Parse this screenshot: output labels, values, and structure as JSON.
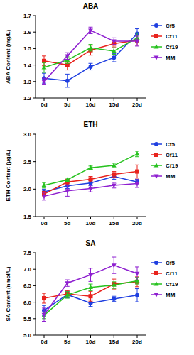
{
  "chart_data": [
    {
      "type": "line",
      "title": "ABA",
      "y_label": "ABA Content (mg/L)",
      "categories": [
        "0d",
        "5d",
        "10d",
        "15d",
        "20d"
      ],
      "ylim": [
        1.2,
        1.7
      ],
      "yticks": [
        1.2,
        1.3,
        1.4,
        1.5,
        1.6,
        1.7
      ],
      "legend": "right",
      "series": [
        {
          "name": "Cf5",
          "color": "#1f3fe0",
          "marker": "circle",
          "values": [
            1.32,
            1.305,
            1.39,
            1.445,
            1.59
          ],
          "errors": [
            0.03,
            0.04,
            0.02,
            0.025,
            0.03
          ]
        },
        {
          "name": "Cf11",
          "color": "#e8221c",
          "marker": "square",
          "values": [
            1.425,
            1.4,
            1.49,
            1.53,
            1.55
          ],
          "errors": [
            0.03,
            0.03,
            0.03,
            0.02,
            0.03
          ]
        },
        {
          "name": "Cf19",
          "color": "#27c21f",
          "marker": "triangle-up",
          "values": [
            1.385,
            1.43,
            1.505,
            1.485,
            1.565
          ],
          "errors": [
            0.03,
            0.02,
            0.02,
            0.02,
            0.03
          ]
        },
        {
          "name": "MM",
          "color": "#8e1fd0",
          "marker": "triangle-down",
          "values": [
            1.3,
            1.455,
            1.61,
            1.545,
            1.545
          ],
          "errors": [
            0.02,
            0.02,
            0.02,
            0.02,
            0.03
          ]
        }
      ]
    },
    {
      "type": "line",
      "title": "ETH",
      "y_label": "ETH Content (μg/L)",
      "categories": [
        "0d",
        "5d",
        "10d",
        "15d",
        "20d"
      ],
      "ylim": [
        1.5,
        3.0
      ],
      "yticks": [
        1.5,
        {
          "value": 2,
          "label": "2.0"
        },
        2.5,
        {
          "value": 3,
          "label": "3.0"
        }
      ],
      "legend": "right",
      "series": [
        {
          "name": "Cf5",
          "color": "#1f3fe0",
          "marker": "circle",
          "values": [
            1.95,
            2.06,
            2.11,
            2.23,
            2.13
          ],
          "errors": [
            0.05,
            0.05,
            0.05,
            0.05,
            0.05
          ]
        },
        {
          "name": "Cf11",
          "color": "#e8221c",
          "marker": "square",
          "values": [
            1.91,
            2.13,
            2.18,
            2.27,
            2.32
          ],
          "errors": [
            0.05,
            0.05,
            0.05,
            0.05,
            0.12
          ]
        },
        {
          "name": "Cf19",
          "color": "#27c21f",
          "marker": "triangle-up",
          "values": [
            2.07,
            2.17,
            2.39,
            2.43,
            2.64
          ],
          "errors": [
            0.05,
            0.03,
            0.03,
            0.04,
            0.05
          ]
        },
        {
          "name": "MM",
          "color": "#8e1fd0",
          "marker": "triangle-down",
          "values": [
            1.87,
            1.97,
            2.01,
            2.07,
            2.1
          ],
          "errors": [
            0.07,
            0.1,
            0.06,
            0.05,
            0.07
          ]
        }
      ]
    },
    {
      "type": "line",
      "title": "SA",
      "y_label": "SA Content (nmol/L)",
      "categories": [
        "0d",
        "5d",
        "10d",
        "15d",
        "20d"
      ],
      "ylim": [
        5.0,
        7.5
      ],
      "yticks": [
        {
          "value": 5,
          "label": "5.0"
        },
        5.5,
        {
          "value": 6,
          "label": "6.0"
        },
        6.5,
        {
          "value": 7,
          "label": "7.0"
        },
        7.5
      ],
      "legend": "right",
      "series": [
        {
          "name": "Cf5",
          "color": "#1f3fe0",
          "marker": "circle",
          "values": [
            5.75,
            6.23,
            5.97,
            6.1,
            6.21
          ],
          "errors": [
            0.15,
            0.1,
            0.1,
            0.08,
            0.2
          ]
        },
        {
          "name": "Cf11",
          "color": "#e8221c",
          "marker": "square",
          "values": [
            6.12,
            6.25,
            6.18,
            6.55,
            6.62
          ],
          "errors": [
            0.15,
            0.1,
            0.15,
            0.15,
            0.15
          ]
        },
        {
          "name": "Cf19",
          "color": "#27c21f",
          "marker": "triangle-up",
          "values": [
            5.6,
            6.22,
            6.45,
            6.52,
            6.65
          ],
          "errors": [
            0.1,
            0.1,
            0.1,
            0.1,
            0.1
          ]
        },
        {
          "name": "MM",
          "color": "#8e1fd0",
          "marker": "triangle-down",
          "values": [
            5.62,
            6.58,
            6.83,
            7.12,
            6.87
          ],
          "errors": [
            0.2,
            0.1,
            0.2,
            0.25,
            0.2
          ]
        }
      ]
    }
  ]
}
